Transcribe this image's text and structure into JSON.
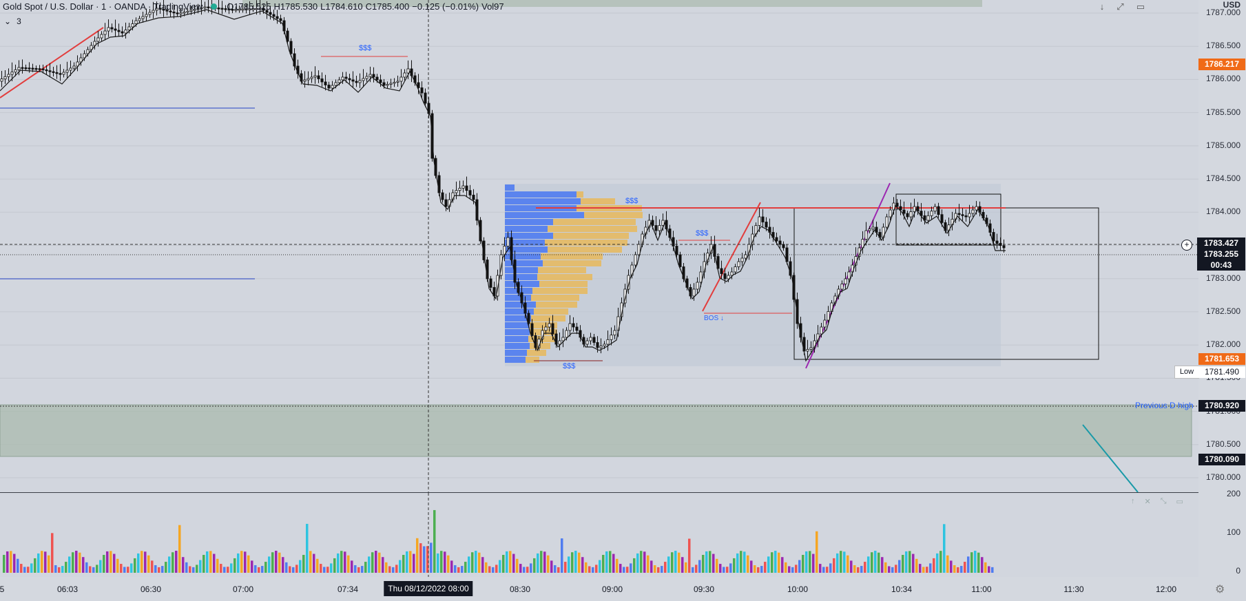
{
  "legend": {
    "symbol": "Gold Spot / U.S. Dollar · 1 · OANDA · TradingView",
    "open": "O1785.525",
    "high": "H1785.530",
    "low": "L1784.610",
    "close": "C1785.400",
    "change": "−0.125 (−0.01%)",
    "volume": "Vol97"
  },
  "indicators": {
    "collapse_count": "3"
  },
  "currency": "USD",
  "price_axis": {
    "labels": [
      "1787.000",
      "1786.500",
      "1786.000",
      "1785.500",
      "1785.000",
      "1784.500",
      "1784.000",
      "1783.500",
      "1783.000",
      "1782.500",
      "1782.000",
      "1781.500",
      "1781.000",
      "1780.500",
      "1780.000"
    ],
    "volume_labels": [
      "200",
      "100",
      "0"
    ]
  },
  "price_tags": {
    "p1786": "1786.217",
    "crosshair": "1783.427",
    "current": "1783.255",
    "countdown": "00:43",
    "p1781": "1781.653",
    "low_label": "Low",
    "low_value": "1781.490",
    "prev_d_high": "1780.920",
    "zone_bottom": "1780.090"
  },
  "annotations": {
    "sss_1": "$$$",
    "sss_2": "$$$",
    "sss_3": "$$$",
    "sss_4": "$$$",
    "bos": "BOS ↓",
    "prev_d_high": "Previous D high"
  },
  "time_axis": {
    "labels": [
      {
        "t": "06:03",
        "x": 98
      },
      {
        "t": "06:30",
        "x": 219
      },
      {
        "t": "07:00",
        "x": 353
      },
      {
        "t": "07:34",
        "x": 505
      },
      {
        "t": "08:30",
        "x": 755
      },
      {
        "t": "09:00",
        "x": 889
      },
      {
        "t": "09:30",
        "x": 1022
      },
      {
        "t": "10:00",
        "x": 1158
      },
      {
        "t": "10:34",
        "x": 1309
      },
      {
        "t": "11:00",
        "x": 1425
      },
      {
        "t": "11:30",
        "x": 1559
      },
      {
        "t": "12:00",
        "x": 1693
      }
    ],
    "cursor_label": "Thu 08/12/2022   08:00",
    "left_cut": "5"
  },
  "colors": {
    "bg": "#d2d6de",
    "demand_zone": "#a9b9ae",
    "vp_blue": "#4f7cf0",
    "vp_gold": "#e8b85a",
    "accent_orange": "#f06a17",
    "red_line": "#e23d3d",
    "purple": "#9c27b0",
    "ma": "#1a1a1a"
  }
}
